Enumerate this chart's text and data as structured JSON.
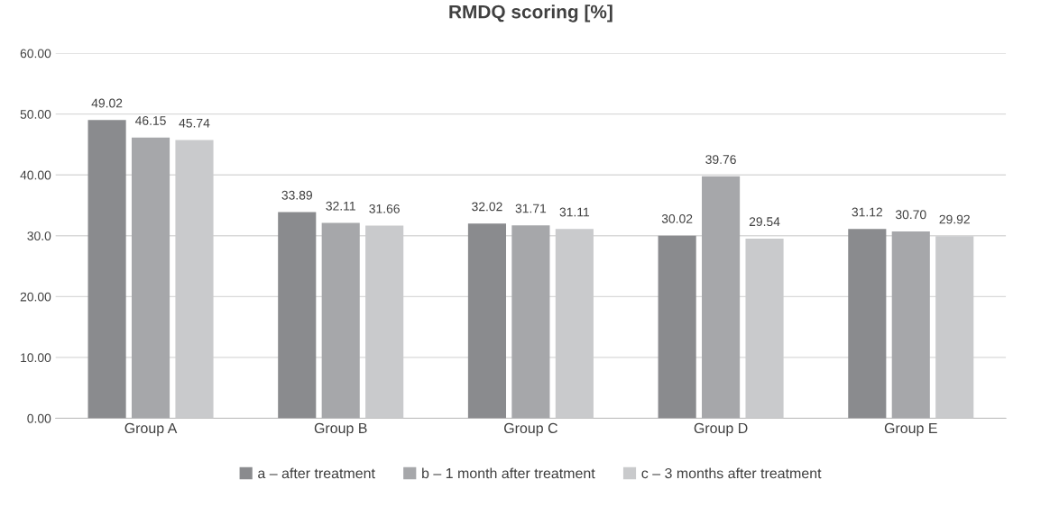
{
  "chart_data": {
    "type": "bar",
    "title": "RMDQ scoring [%]",
    "categories": [
      "Group A",
      "Group B",
      "Group C",
      "Group D",
      "Group E"
    ],
    "series": [
      {
        "name": "a – after treatment",
        "color": "#8a8b8e",
        "values": [
          49.02,
          33.89,
          32.02,
          30.02,
          31.12
        ],
        "value_labels": [
          "49.02",
          "33.89",
          "32.02",
          "30.02",
          "31.12"
        ]
      },
      {
        "name": "b – 1 month after treatment",
        "color": "#a6a7aa",
        "values": [
          46.15,
          32.11,
          31.71,
          39.76,
          30.7
        ],
        "value_labels": [
          "46.15",
          "32.11",
          "31.71",
          "39.76",
          "30.70"
        ]
      },
      {
        "name": "c – 3 months after treatment",
        "color": "#c9cacc",
        "values": [
          45.74,
          31.66,
          31.11,
          29.54,
          29.92
        ],
        "value_labels": [
          "45.74",
          "31.66",
          "31.11",
          "29.54",
          "29.92"
        ]
      }
    ],
    "ylim": [
      0,
      60
    ],
    "yticks": [
      {
        "value": 0,
        "label": "0.00"
      },
      {
        "value": 10,
        "label": "10.00"
      },
      {
        "value": 20,
        "label": "20.00"
      },
      {
        "value": 30,
        "label": "30.0"
      },
      {
        "value": 40,
        "label": "40.00"
      },
      {
        "value": 50,
        "label": "50.00"
      },
      {
        "value": 60,
        "label": "60.00"
      }
    ],
    "grid": "y",
    "legend": "bottom"
  }
}
